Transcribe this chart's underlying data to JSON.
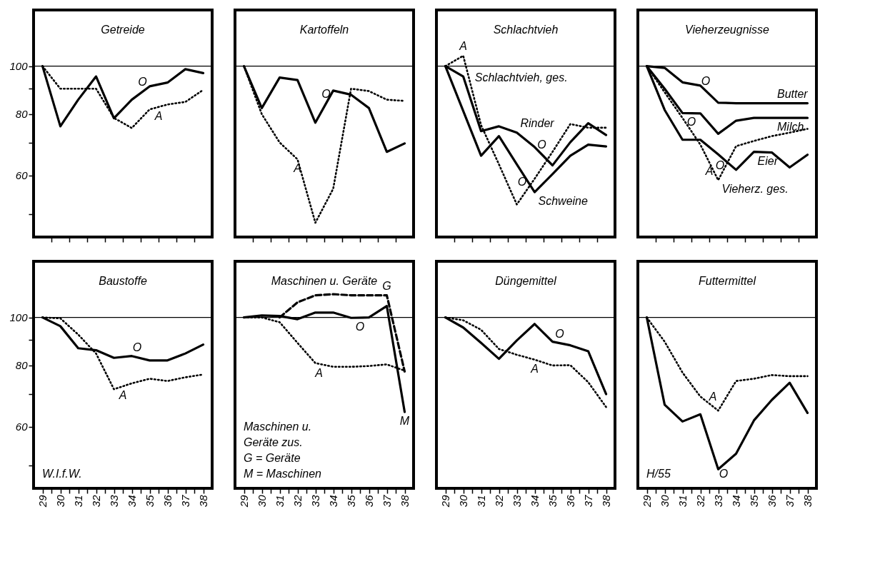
{
  "chart_data": [
    {
      "type": "line",
      "title": "Getreide",
      "x": [
        29,
        30,
        31,
        32,
        33,
        34,
        35,
        36,
        37,
        38
      ],
      "xlim": [
        28.5,
        38.5
      ],
      "ylim": [
        45,
        130
      ],
      "log": "y",
      "tick_labels": "y",
      "xticks": [
        {
          "value": 29.5,
          "label": null
        },
        {
          "value": 30.5,
          "label": null
        },
        {
          "value": 31.5,
          "label": null
        },
        {
          "value": 32.5,
          "label": null
        },
        {
          "value": 33.5,
          "label": null
        },
        {
          "value": 34.5,
          "label": null
        },
        {
          "value": 35.5,
          "label": null
        },
        {
          "value": 36.5,
          "label": null
        },
        {
          "value": 37.5,
          "label": null
        }
      ],
      "yticks": [
        100,
        {
          "value": 90,
          "label": null
        },
        80,
        {
          "value": 70,
          "label": null
        },
        60,
        {
          "value": 50,
          "label": null
        }
      ],
      "ref_lines": [
        {
          "axis": "y",
          "value": 100,
          "color": "#000000"
        }
      ],
      "series": [
        {
          "color": "#000000",
          "line_style": "solid",
          "values": [
            100,
            75.5,
            85.5,
            95.3,
            78.4,
            85.5,
            91,
            92.6,
            98.6,
            96.8
          ]
        },
        {
          "color": "#000000",
          "line_style": "dotted",
          "values": [
            100,
            90,
            90,
            90,
            78.5,
            74.9,
            81.7,
            83.6,
            84.6,
            89.5
          ]
        }
      ],
      "annotations": [
        {
          "text": "O",
          "x": 34.6,
          "y": 88.8
        },
        {
          "text": "A",
          "x": 35.5,
          "y": 82.6
        }
      ]
    },
    {
      "type": "line",
      "title": "Kartoffeln",
      "x": [
        29,
        30,
        31,
        32,
        33,
        34,
        35,
        36,
        37,
        38
      ],
      "xlim": [
        28.5,
        38.5
      ],
      "ylim": [
        45,
        130
      ],
      "log": "y",
      "tick_labels": false,
      "xticks": [
        {
          "value": 29.5,
          "label": null
        },
        {
          "value": 30.5,
          "label": null
        },
        {
          "value": 31.5,
          "label": null
        },
        {
          "value": 32.5,
          "label": null
        },
        {
          "value": 33.5,
          "label": null
        },
        {
          "value": 34.5,
          "label": null
        },
        {
          "value": 35.5,
          "label": null
        },
        {
          "value": 36.5,
          "label": null
        },
        {
          "value": 37.5,
          "label": null
        }
      ],
      "ref_lines": [
        {
          "axis": "y",
          "value": 100,
          "color": "#000000"
        }
      ],
      "series": [
        {
          "color": "#000000",
          "line_style": "solid",
          "values": [
            100,
            82.2,
            94.8,
            93.7,
            76.8,
            89.2,
            87.5,
            82.2,
            67,
            69.7
          ]
        },
        {
          "color": "#000000",
          "line_style": "dotted",
          "values": [
            100,
            79.9,
            70,
            64.7,
            48.1,
            56.4,
            90,
            89,
            85.5,
            85
          ]
        }
      ],
      "annotations": [
        {
          "text": "O",
          "x": 33.6,
          "y": 83.9
        },
        {
          "text": "A",
          "x": 32,
          "y": 64.7
        }
      ]
    },
    {
      "type": "line",
      "title": "Schlachtvieh",
      "x": [
        29,
        30,
        31,
        32,
        33,
        34,
        35,
        36,
        37,
        38
      ],
      "xlim": [
        28.5,
        38.5
      ],
      "ylim": [
        45,
        130
      ],
      "log": "y",
      "tick_labels": false,
      "xticks": [
        {
          "value": 29.5,
          "label": null
        },
        {
          "value": 30.5,
          "label": null
        },
        {
          "value": 31.5,
          "label": null
        },
        {
          "value": 32.5,
          "label": null
        },
        {
          "value": 33.5,
          "label": null
        },
        {
          "value": 34.5,
          "label": null
        },
        {
          "value": 35.5,
          "label": null
        },
        {
          "value": 36.5,
          "label": null
        },
        {
          "value": 37.5,
          "label": null
        }
      ],
      "ref_lines": [
        {
          "axis": "y",
          "value": 100,
          "color": "#000000"
        }
      ],
      "series": [
        {
          "color": "#000000",
          "line_style": "solid",
          "values": [
            100,
            95.3,
            73.8,
            75.5,
            73.3,
            68.5,
            62.9,
            70.1,
            76.6,
            72.5
          ]
        },
        {
          "color": "#000000",
          "line_style": "solid",
          "values": [
            100,
            81.1,
            65.8,
            72.1,
            63.2,
            55.5,
            60.4,
            65.8,
            69.3,
            68.7
          ]
        },
        {
          "color": "#000000",
          "line_style": "dotted",
          "values": [
            100,
            105,
            75.9,
            63.2,
            52.4,
            59.1,
            67,
            76.3,
            75,
            75
          ]
        }
      ],
      "annotations": [
        {
          "text": "A",
          "x": 30,
          "y": 105
        },
        {
          "text": "Schlachtvieh, ges.",
          "x": 30.45,
          "y": 90.8
        },
        {
          "text": "Rinder",
          "x": 33,
          "y": 73.3
        },
        {
          "text": "O",
          "x": 34.4,
          "y": 66.2
        },
        {
          "text": "O",
          "x": 33.3,
          "y": 60.7
        },
        {
          "text": "Schweine",
          "x": 34,
          "y": 55.5
        }
      ]
    },
    {
      "type": "line",
      "title": "Vieherzeugnisse",
      "x": [
        29,
        30,
        31,
        32,
        33,
        34,
        35,
        36,
        37,
        38
      ],
      "xlim": [
        28.5,
        38.5
      ],
      "ylim": [
        45,
        130
      ],
      "log": "y",
      "tick_labels": false,
      "xticks": [
        {
          "value": 29.5,
          "label": null
        },
        {
          "value": 30.5,
          "label": null
        },
        {
          "value": 31.5,
          "label": null
        },
        {
          "value": 32.5,
          "label": null
        },
        {
          "value": 33.5,
          "label": null
        },
        {
          "value": 34.5,
          "label": null
        },
        {
          "value": 35.5,
          "label": null
        },
        {
          "value": 36.5,
          "label": null
        },
        {
          "value": 37.5,
          "label": null
        }
      ],
      "ref_lines": [
        {
          "axis": "y",
          "value": 100,
          "color": "#000000"
        }
      ],
      "series": [
        {
          "color": "#000000",
          "line_style": "solid",
          "values": [
            100,
            99.2,
            92.7,
            91.3,
            84.3,
            84.1,
            84.1,
            84.1,
            84.1,
            84.1
          ]
        },
        {
          "color": "#000000",
          "line_style": "solid",
          "values": [
            100,
            90,
            80.3,
            80.2,
            72.9,
            77.5,
            78.5,
            78.5,
            78.5,
            78.5
          ]
        },
        {
          "color": "#000000",
          "line_style": "solid",
          "values": [
            100,
            81.5,
            70.9,
            70.9,
            66.2,
            61.6,
            67,
            66.8,
            62.3,
            66.1
          ]
        },
        {
          "color": "#000000",
          "line_style": "dotted",
          "values": [
            100,
            88.5,
            78.5,
            69.3,
            58.7,
            68.8,
            70.5,
            72.1,
            73.3,
            74.6
          ]
        }
      ],
      "annotations": [
        {
          "text": "O",
          "x": 32.3,
          "y": 89.2
        },
        {
          "text": "Butter",
          "x": 36.1,
          "y": 84.1
        },
        {
          "text": "Milch",
          "x": 36.1,
          "y": 78.5
        },
        {
          "text": "O",
          "x": 31.5,
          "y": 80.3
        },
        {
          "text": "O",
          "x": 33.1,
          "y": 65.7
        },
        {
          "text": "A",
          "x": 32.5,
          "y": 63.8
        },
        {
          "text": "Eier",
          "x": 35,
          "y": 67
        },
        {
          "text": "Vieherz. ges.",
          "x": 33,
          "y": 58.7
        }
      ]
    },
    {
      "type": "line",
      "title": "Baustoffe",
      "x": [
        29,
        30,
        31,
        32,
        33,
        34,
        35,
        36,
        37,
        38
      ],
      "xlim": [
        28.5,
        38.5
      ],
      "ylim": [
        45,
        130
      ],
      "log": "y",
      "xticks": [
        29,
        {
          "value": 29.5,
          "label": null
        },
        30,
        {
          "value": 30.5,
          "label": null
        },
        31,
        {
          "value": 31.5,
          "label": null
        },
        32,
        {
          "value": 32.5,
          "label": null
        },
        33,
        {
          "value": 33.5,
          "label": null
        },
        34,
        {
          "value": 34.5,
          "label": null
        },
        35,
        {
          "value": 35.5,
          "label": null
        },
        36,
        {
          "value": 36.5,
          "label": null
        },
        37,
        {
          "value": 37.5,
          "label": null
        },
        38
      ],
      "yticks": [
        100,
        {
          "value": 90,
          "label": null
        },
        80,
        {
          "value": 70,
          "label": null
        },
        60,
        {
          "value": 50,
          "label": null
        }
      ],
      "ref_lines": [
        {
          "axis": "y",
          "value": 100,
          "color": "#000000"
        }
      ],
      "series": [
        {
          "color": "#000000",
          "line_style": "solid",
          "values": [
            100,
            96,
            86.6,
            85.8,
            82.8,
            83.5,
            81.8,
            81.8,
            84.5,
            88.1
          ]
        },
        {
          "color": "#000000",
          "line_style": "dotted",
          "values": [
            100,
            99.6,
            92.3,
            84.5,
            71.5,
            73.5,
            75.1,
            74.3,
            75.6,
            76.6
          ]
        }
      ],
      "annotations": [
        {
          "text": "O",
          "x": 34.3,
          "y": 83
        },
        {
          "text": "A",
          "x": 33.5,
          "y": 72.5
        },
        "W.I.f.W."
      ]
    },
    {
      "type": "line",
      "title": "Maschinen u. Geräte",
      "x": [
        29,
        30,
        31,
        32,
        33,
        34,
        35,
        36,
        37,
        38
      ],
      "xlim": [
        28.5,
        38.5
      ],
      "ylim": [
        45,
        130
      ],
      "log": "y",
      "tick_labels": "x",
      "xticks": [
        29,
        {
          "value": 29.5,
          "label": null
        },
        30,
        {
          "value": 30.5,
          "label": null
        },
        31,
        {
          "value": 31.5,
          "label": null
        },
        32,
        {
          "value": 32.5,
          "label": null
        },
        33,
        {
          "value": 33.5,
          "label": null
        },
        34,
        {
          "value": 34.5,
          "label": null
        },
        35,
        {
          "value": 35.5,
          "label": null
        },
        36,
        {
          "value": 36.5,
          "label": null
        },
        37,
        {
          "value": 37.5,
          "label": null
        },
        38
      ],
      "ref_lines": [
        {
          "axis": "y",
          "value": 100,
          "color": "#000000"
        }
      ],
      "series": [
        {
          "color": "#000000",
          "line_style": "solid",
          "values": [
            100,
            100.9,
            100.7,
            99.2,
            102.3,
            102.3,
            99.8,
            100,
            105.5,
            64.3
          ]
        },
        {
          "color": "#000000",
          "line_style": "dashed",
          "values": [
            null,
            null,
            100,
            107.3,
            110.9,
            111.5,
            110.9,
            110.9,
            110.9,
            77.7
          ]
        },
        {
          "color": "#000000",
          "line_style": "dotted",
          "values": [
            100,
            100,
            97.8,
            88.8,
            80.8,
            79.4,
            79.4,
            79.7,
            80.3,
            78
          ]
        }
      ],
      "annotations": [
        {
          "text": "G",
          "x": 37,
          "y": 110.9
        },
        {
          "text": "O",
          "x": 35.5,
          "y": 99.9
        },
        {
          "text": "A",
          "x": 33.2,
          "y": 80.5
        },
        "Maschinen u.",
        "Geräte zus.",
        "G = Geräte",
        "M = Maschinen",
        {
          "text": "M",
          "x": 38,
          "y": 64.3
        }
      ]
    },
    {
      "type": "line",
      "title": "Düngemittel",
      "x": [
        29,
        30,
        31,
        32,
        33,
        34,
        35,
        36,
        37,
        38
      ],
      "xlim": [
        28.5,
        38.5
      ],
      "ylim": [
        45,
        130
      ],
      "log": "y",
      "tick_labels": "x",
      "xticks": [
        29,
        {
          "value": 29.5,
          "label": null
        },
        30,
        {
          "value": 30.5,
          "label": null
        },
        31,
        {
          "value": 31.5,
          "label": null
        },
        32,
        {
          "value": 32.5,
          "label": null
        },
        33,
        {
          "value": 33.5,
          "label": null
        },
        34,
        {
          "value": 34.5,
          "label": null
        },
        35,
        {
          "value": 35.5,
          "label": null
        },
        36,
        {
          "value": 36.5,
          "label": null
        },
        37,
        {
          "value": 37.5,
          "label": null
        },
        38
      ],
      "ref_lines": [
        {
          "axis": "y",
          "value": 100,
          "color": "#000000"
        }
      ],
      "series": [
        {
          "color": "#000000",
          "line_style": "solid",
          "values": [
            100,
            95.4,
            88.8,
            82.4,
            89.8,
            97,
            89.3,
            87.8,
            85.4,
            69.9
          ]
        },
        {
          "color": "#000000",
          "line_style": "dotted",
          "values": [
            100,
            98.7,
            94.4,
            86.3,
            84,
            82.1,
            79.9,
            80,
            73.9,
            65.8
          ]
        }
      ],
      "annotations": [
        {
          "text": "O",
          "x": 35.4,
          "y": 88.7
        },
        {
          "text": "A",
          "x": 34,
          "y": 82.1
        }
      ]
    },
    {
      "type": "line",
      "title": "Futtermittel",
      "x": [
        29,
        30,
        31,
        32,
        33,
        34,
        35,
        36,
        37,
        38
      ],
      "xlim": [
        28.5,
        38.5
      ],
      "ylim": [
        45,
        130
      ],
      "log": "y",
      "tick_labels": "x",
      "xticks": [
        29,
        {
          "value": 29.5,
          "label": null
        },
        30,
        {
          "value": 30.5,
          "label": null
        },
        31,
        {
          "value": 31.5,
          "label": null
        },
        32,
        {
          "value": 32.5,
          "label": null
        },
        33,
        {
          "value": 33.5,
          "label": null
        },
        34,
        {
          "value": 34.5,
          "label": null
        },
        35,
        {
          "value": 35.5,
          "label": null
        },
        36,
        {
          "value": 36.5,
          "label": null
        },
        37,
        {
          "value": 37.5,
          "label": null
        },
        38
      ],
      "ref_lines": [
        {
          "axis": "y",
          "value": 100,
          "color": "#000000"
        }
      ],
      "series": [
        {
          "color": "#000000",
          "line_style": "solid",
          "values": [
            100,
            66.5,
            61.5,
            63.6,
            49.2,
            52.9,
            61.8,
            68,
            73.7,
            64
          ]
        },
        {
          "color": "#000000",
          "line_style": "dotted",
          "values": [
            100,
            89.3,
            77.3,
            69.1,
            64.7,
            74.3,
            75.1,
            76.4,
            76,
            76
          ]
        }
      ],
      "annotations": [
        {
          "text": "A",
          "x": 32.7,
          "y": 66.1
        },
        {
          "text": "O",
          "x": 33.3,
          "y": 50.3
        },
        "H/55"
      ]
    }
  ]
}
